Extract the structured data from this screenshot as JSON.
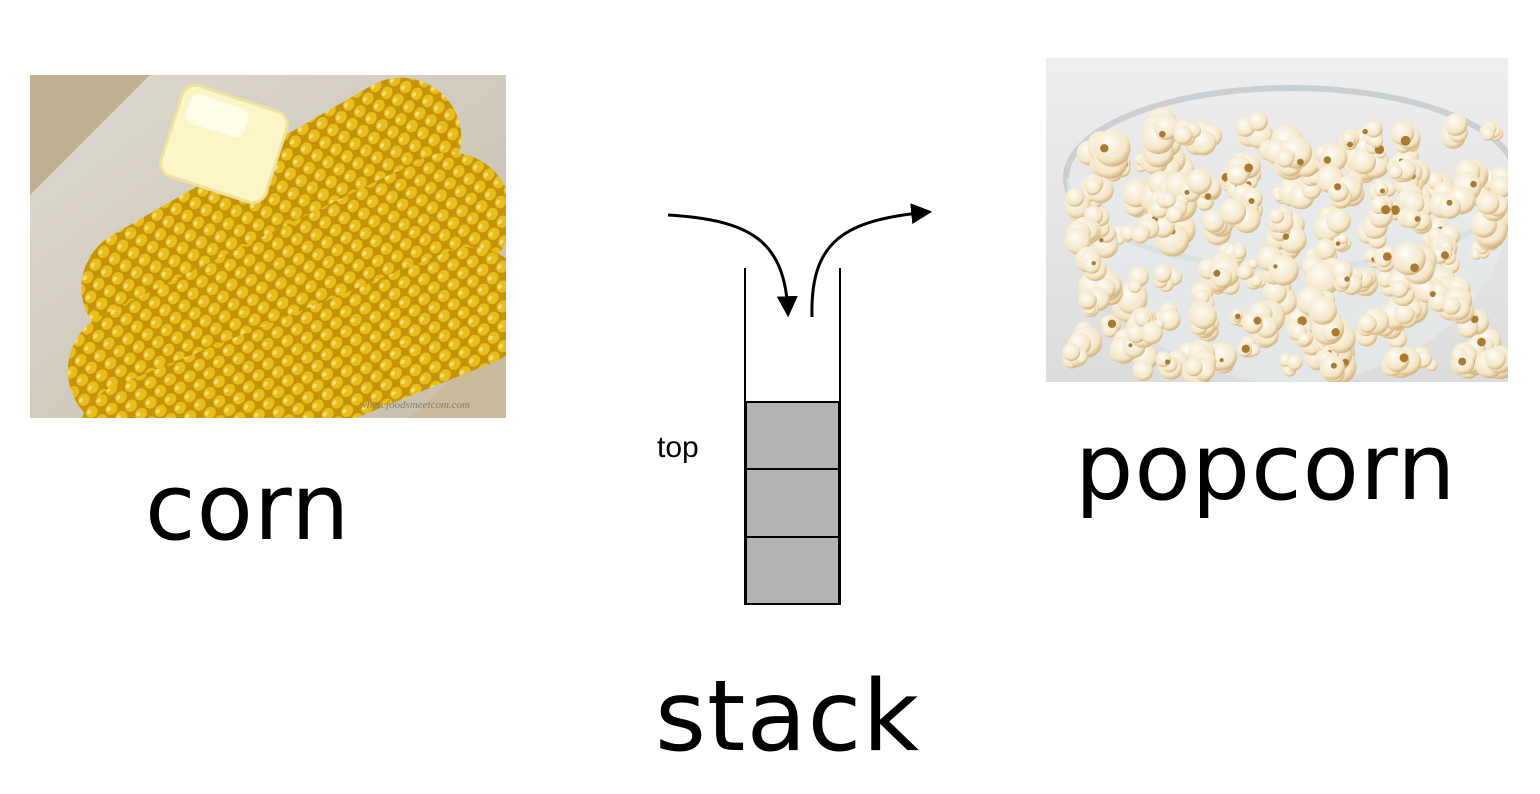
{
  "corn": {
    "caption": "corn",
    "image": "corn-on-the-cob-with-butter",
    "watermark": "wherefoodsmeetcom.com"
  },
  "stack": {
    "caption": "stack",
    "top_label": "top",
    "cell_color": "#b3b3b3",
    "cells": 3
  },
  "popcorn": {
    "caption": "popcorn",
    "image": "bowl-of-popcorn"
  },
  "colors": {
    "corn_kernel": "#f2c418",
    "butter": "#fbf5c8",
    "popcorn": "#f7efdd"
  }
}
